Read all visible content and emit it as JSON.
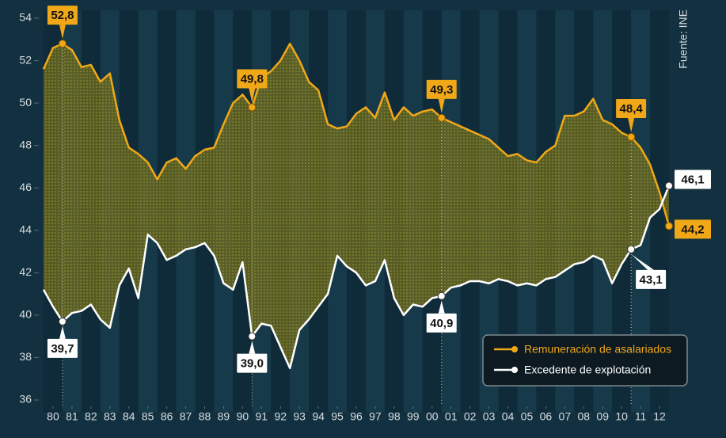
{
  "chart_data": {
    "type": "line",
    "source": "Fuente: INE",
    "x": [
      1980,
      1980.5,
      1981,
      1981.5,
      1982,
      1982.5,
      1983,
      1983.5,
      1984,
      1984.5,
      1985,
      1985.5,
      1986,
      1986.5,
      1987,
      1987.5,
      1988,
      1988.5,
      1989,
      1989.5,
      1990,
      1990.5,
      1991,
      1991.5,
      1992,
      1992.5,
      1993,
      1993.5,
      1994,
      1994.5,
      1995,
      1995.5,
      1996,
      1996.5,
      1997,
      1997.5,
      1998,
      1998.5,
      1999,
      1999.5,
      2000,
      2000.5,
      2001,
      2001.5,
      2002,
      2002.5,
      2003,
      2003.5,
      2004,
      2004.5,
      2005,
      2005.5,
      2006,
      2006.5,
      2007,
      2007.5,
      2008,
      2008.5,
      2009,
      2009.5,
      2010,
      2010.5,
      2011,
      2011.5,
      2012,
      2012.5,
      2013
    ],
    "series": [
      {
        "name": "Remuneración de asalariados",
        "color": "#f0a818",
        "values": [
          51.6,
          52.6,
          52.8,
          52.5,
          51.7,
          51.8,
          51.0,
          51.4,
          49.2,
          47.9,
          47.6,
          47.2,
          46.4,
          47.2,
          47.4,
          46.9,
          47.5,
          47.8,
          47.9,
          49.0,
          50.0,
          50.4,
          49.8,
          51.2,
          51.5,
          52.0,
          52.8,
          52.0,
          51.0,
          50.6,
          49.0,
          48.8,
          48.9,
          49.5,
          49.8,
          49.3,
          50.5,
          49.2,
          49.8,
          49.4,
          49.6,
          49.7,
          49.3,
          49.1,
          48.9,
          48.7,
          48.5,
          48.3,
          47.9,
          47.5,
          47.6,
          47.3,
          47.2,
          47.7,
          48.0,
          49.4,
          49.4,
          49.6,
          50.2,
          49.2,
          49.0,
          48.6,
          48.4,
          47.9,
          47.1,
          45.8,
          44.2
        ],
        "value_labels": [
          null,
          null,
          "52,8",
          null,
          null,
          null,
          null,
          null,
          null,
          null,
          null,
          null,
          null,
          null,
          null,
          null,
          null,
          null,
          null,
          null,
          null,
          null,
          "49,8",
          null,
          null,
          null,
          null,
          null,
          null,
          null,
          null,
          null,
          null,
          null,
          null,
          null,
          null,
          null,
          null,
          null,
          null,
          null,
          "49,3",
          null,
          null,
          null,
          null,
          null,
          null,
          null,
          null,
          null,
          null,
          null,
          null,
          null,
          null,
          null,
          null,
          null,
          null,
          null,
          "48,4",
          null,
          null,
          null,
          "44,2"
        ]
      },
      {
        "name": "Excedente de explotación",
        "color": "#ffffff",
        "values": [
          41.2,
          40.4,
          39.7,
          40.1,
          40.2,
          40.5,
          39.8,
          39.4,
          41.4,
          42.2,
          40.8,
          43.8,
          43.4,
          42.6,
          42.8,
          43.1,
          43.2,
          43.4,
          42.8,
          41.5,
          41.2,
          42.5,
          39.0,
          39.6,
          39.5,
          38.5,
          37.5,
          39.3,
          39.8,
          40.4,
          41.0,
          42.8,
          42.3,
          42.0,
          41.4,
          41.6,
          42.6,
          40.8,
          40.0,
          40.5,
          40.4,
          40.8,
          40.9,
          41.3,
          41.4,
          41.6,
          41.6,
          41.5,
          41.7,
          41.6,
          41.4,
          41.5,
          41.4,
          41.7,
          41.8,
          42.1,
          42.4,
          42.5,
          42.8,
          42.6,
          41.5,
          42.4,
          43.1,
          43.3,
          44.6,
          45.0,
          46.1
        ],
        "value_labels": [
          null,
          null,
          "39,7",
          null,
          null,
          null,
          null,
          null,
          null,
          null,
          null,
          null,
          null,
          null,
          null,
          null,
          null,
          null,
          null,
          null,
          null,
          null,
          "39,0",
          null,
          null,
          null,
          null,
          null,
          null,
          null,
          null,
          null,
          null,
          null,
          null,
          null,
          null,
          null,
          null,
          null,
          null,
          null,
          "40,9",
          null,
          null,
          null,
          null,
          null,
          null,
          null,
          null,
          null,
          null,
          null,
          null,
          null,
          null,
          null,
          null,
          null,
          null,
          null,
          "43,1",
          null,
          null,
          null,
          "46,1"
        ]
      }
    ],
    "xlim": [
      1980,
      2013
    ],
    "xticks": [
      {
        "value": 1980.5,
        "label": "80"
      },
      {
        "value": 1981.5,
        "label": "81"
      },
      {
        "value": 1982.5,
        "label": "82"
      },
      {
        "value": 1983.5,
        "label": "83"
      },
      {
        "value": 1984.5,
        "label": "84"
      },
      {
        "value": 1985.5,
        "label": "85"
      },
      {
        "value": 1986.5,
        "label": "86"
      },
      {
        "value": 1987.5,
        "label": "87"
      },
      {
        "value": 1988.5,
        "label": "88"
      },
      {
        "value": 1989.5,
        "label": "89"
      },
      {
        "value": 1990.5,
        "label": "90"
      },
      {
        "value": 1991.5,
        "label": "91"
      },
      {
        "value": 1992.5,
        "label": "92"
      },
      {
        "value": 1993.5,
        "label": "93"
      },
      {
        "value": 1994.5,
        "label": "94"
      },
      {
        "value": 1995.5,
        "label": "95"
      },
      {
        "value": 1996.5,
        "label": "96"
      },
      {
        "value": 1997.5,
        "label": "97"
      },
      {
        "value": 1998.5,
        "label": "98"
      },
      {
        "value": 1999.5,
        "label": "99"
      },
      {
        "value": 2000.5,
        "label": "00"
      },
      {
        "value": 2001.5,
        "label": "01"
      },
      {
        "value": 2002.5,
        "label": "02"
      },
      {
        "value": 2003.5,
        "label": "03"
      },
      {
        "value": 2004.5,
        "label": "04"
      },
      {
        "value": 2005.5,
        "label": "05"
      },
      {
        "value": 2006.5,
        "label": "06"
      },
      {
        "value": 2007.5,
        "label": "07"
      },
      {
        "value": 2008.5,
        "label": "08"
      },
      {
        "value": 2009.5,
        "label": "09"
      },
      {
        "value": 2010.5,
        "label": "10"
      },
      {
        "value": 2011.5,
        "label": "11"
      },
      {
        "value": 2012.5,
        "label": "12"
      }
    ],
    "ylim": [
      36,
      54
    ],
    "yticks": [
      36,
      38,
      40,
      42,
      44,
      46,
      48,
      50,
      52,
      54
    ],
    "grid": false,
    "legend": "lower right"
  }
}
